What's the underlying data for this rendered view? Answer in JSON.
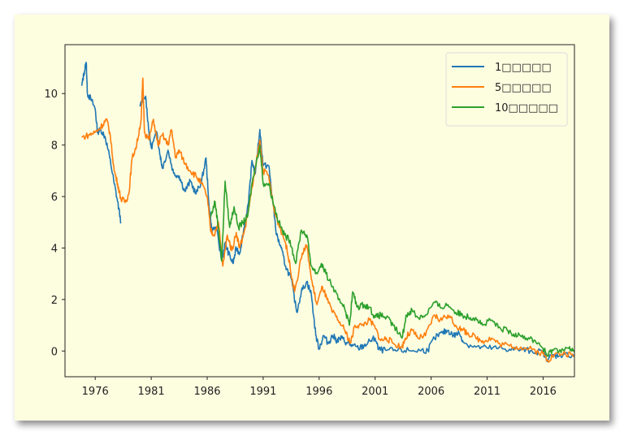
{
  "chart_data": {
    "type": "line",
    "title": "",
    "xlabel": "",
    "ylabel": "",
    "xlim": [
      1973.3,
      2018.8
    ],
    "ylim": [
      -1.0,
      11.9
    ],
    "xticks": [
      1976,
      1981,
      1986,
      1991,
      1996,
      2001,
      2006,
      2011,
      2016
    ],
    "yticks": [
      0,
      2,
      4,
      6,
      8,
      10
    ],
    "grid": false,
    "legend_position": "top-right",
    "series": [
      {
        "name": "1□□□□□",
        "color": "#1f77b4",
        "points": [
          [
            1974.8,
            10.3
          ],
          [
            1975.0,
            10.8
          ],
          [
            1975.2,
            11.2
          ],
          [
            1975.3,
            10.0
          ],
          [
            1975.6,
            9.8
          ],
          [
            1976.0,
            9.4
          ],
          [
            1976.2,
            8.5
          ],
          [
            1976.5,
            8.6
          ],
          [
            1976.9,
            8.3
          ],
          [
            1977.3,
            7.5
          ],
          [
            1977.7,
            6.5
          ],
          [
            1978.0,
            5.8
          ],
          [
            1978.3,
            5.0
          ],
          null,
          [
            1980.0,
            9.5
          ],
          [
            1980.5,
            9.9
          ],
          [
            1980.8,
            8.5
          ],
          [
            1981.0,
            7.9
          ],
          [
            1981.5,
            8.5
          ],
          [
            1981.8,
            7.6
          ],
          [
            1982.0,
            7.1
          ],
          [
            1982.5,
            7.8
          ],
          [
            1983.0,
            6.9
          ],
          [
            1983.5,
            6.8
          ],
          [
            1984.0,
            6.2
          ],
          [
            1984.5,
            6.6
          ],
          [
            1985.0,
            6.1
          ],
          [
            1985.5,
            6.6
          ],
          [
            1985.9,
            7.5
          ],
          [
            1986.1,
            6.0
          ],
          [
            1986.4,
            4.7
          ],
          [
            1986.8,
            4.8
          ],
          [
            1987.3,
            3.5
          ],
          [
            1987.6,
            4.2
          ],
          [
            1987.9,
            3.8
          ],
          [
            1988.3,
            3.4
          ],
          [
            1988.6,
            4.0
          ],
          [
            1988.9,
            3.8
          ],
          [
            1989.3,
            4.8
          ],
          [
            1989.7,
            5.8
          ],
          [
            1990.0,
            7.4
          ],
          [
            1990.3,
            6.9
          ],
          [
            1990.7,
            8.6
          ],
          [
            1991.0,
            7.2
          ],
          [
            1991.5,
            7.2
          ],
          [
            1991.8,
            6.0
          ],
          [
            1992.2,
            4.5
          ],
          [
            1992.6,
            4.0
          ],
          [
            1993.0,
            3.3
          ],
          [
            1993.5,
            2.8
          ],
          [
            1994.0,
            1.5
          ],
          [
            1994.4,
            2.3
          ],
          [
            1994.9,
            2.7
          ],
          [
            1995.3,
            2.2
          ],
          [
            1995.7,
            0.6
          ],
          [
            1996.0,
            0.1
          ],
          [
            1996.4,
            0.6
          ],
          [
            1996.8,
            0.3
          ],
          [
            1997.2,
            0.6
          ],
          [
            1997.6,
            0.4
          ],
          [
            1998.0,
            0.5
          ],
          [
            1998.5,
            0.3
          ],
          [
            1999.0,
            0.2
          ],
          [
            1999.5,
            0.1
          ],
          [
            2000.0,
            0.2
          ],
          [
            2000.6,
            0.4
          ],
          [
            2001.0,
            0.5
          ],
          [
            2001.3,
            0.05
          ],
          [
            2002.0,
            0.02
          ],
          [
            2003.0,
            0.02
          ],
          [
            2004.0,
            0.02
          ],
          [
            2005.0,
            0.02
          ],
          [
            2005.7,
            0.03
          ],
          [
            2006.3,
            0.5
          ],
          [
            2007.0,
            0.7
          ],
          [
            2007.5,
            0.8
          ],
          [
            2008.0,
            0.6
          ],
          [
            2008.5,
            0.7
          ],
          [
            2009.0,
            0.3
          ],
          [
            2010.0,
            0.15
          ],
          [
            2011.0,
            0.12
          ],
          [
            2012.0,
            0.1
          ],
          [
            2013.0,
            0.07
          ],
          [
            2014.0,
            0.05
          ],
          [
            2015.0,
            0.0
          ],
          [
            2016.0,
            -0.05
          ],
          [
            2016.3,
            -0.3
          ],
          [
            2016.8,
            -0.2
          ],
          [
            2017.5,
            -0.15
          ],
          [
            2018.8,
            -0.15
          ]
        ]
      },
      {
        "name": "5□□□□□",
        "color": "#ff7f0e",
        "points": [
          [
            1974.8,
            8.3
          ],
          [
            1975.5,
            8.4
          ],
          [
            1976.0,
            8.5
          ],
          [
            1976.5,
            8.7
          ],
          [
            1977.0,
            9.0
          ],
          [
            1977.3,
            8.5
          ],
          [
            1977.7,
            7.0
          ],
          [
            1978.0,
            6.5
          ],
          [
            1978.3,
            5.9
          ],
          [
            1978.7,
            5.8
          ],
          [
            1979.0,
            6.1
          ],
          [
            1979.3,
            7.5
          ],
          [
            1979.7,
            8.0
          ],
          [
            1980.1,
            9.0
          ],
          [
            1980.25,
            10.6
          ],
          [
            1980.4,
            8.5
          ],
          [
            1980.8,
            8.2
          ],
          [
            1981.2,
            9.0
          ],
          [
            1981.6,
            8.0
          ],
          [
            1982.0,
            8.4
          ],
          [
            1982.5,
            8.0
          ],
          [
            1982.8,
            8.6
          ],
          [
            1983.2,
            7.5
          ],
          [
            1983.5,
            7.8
          ],
          [
            1984.0,
            7.3
          ],
          [
            1984.5,
            7.0
          ],
          [
            1985.0,
            6.8
          ],
          [
            1985.5,
            6.5
          ],
          [
            1986.0,
            6.0
          ],
          [
            1986.3,
            4.7
          ],
          [
            1986.6,
            4.5
          ],
          [
            1987.0,
            5.0
          ],
          [
            1987.4,
            3.3
          ],
          [
            1987.8,
            4.5
          ],
          [
            1988.2,
            3.9
          ],
          [
            1988.6,
            4.6
          ],
          [
            1988.9,
            4.0
          ],
          [
            1989.4,
            4.8
          ],
          [
            1989.8,
            5.8
          ],
          [
            1990.2,
            6.8
          ],
          [
            1990.7,
            8.2
          ],
          [
            1991.0,
            7.0
          ],
          [
            1991.5,
            6.8
          ],
          [
            1992.0,
            5.4
          ],
          [
            1992.5,
            4.8
          ],
          [
            1993.0,
            4.2
          ],
          [
            1993.4,
            3.3
          ],
          [
            1993.8,
            2.3
          ],
          [
            1994.5,
            3.8
          ],
          [
            1994.9,
            4.1
          ],
          [
            1995.3,
            2.8
          ],
          [
            1995.8,
            1.8
          ],
          [
            1996.3,
            2.5
          ],
          [
            1996.7,
            2.0
          ],
          [
            1997.2,
            1.5
          ],
          [
            1997.7,
            1.2
          ],
          [
            1998.3,
            0.8
          ],
          [
            1998.8,
            0.3
          ],
          [
            1999.2,
            1.0
          ],
          [
            1999.8,
            1.0
          ],
          [
            2000.5,
            1.2
          ],
          [
            2001.0,
            0.9
          ],
          [
            2001.5,
            0.4
          ],
          [
            2002.0,
            0.5
          ],
          [
            2002.6,
            0.3
          ],
          [
            2003.4,
            0.15
          ],
          [
            2003.7,
            0.5
          ],
          [
            2004.3,
            0.8
          ],
          [
            2004.8,
            0.5
          ],
          [
            2005.5,
            0.6
          ],
          [
            2006.3,
            1.4
          ],
          [
            2006.8,
            1.2
          ],
          [
            2007.5,
            1.4
          ],
          [
            2008.2,
            1.0
          ],
          [
            2008.8,
            0.8
          ],
          [
            2009.3,
            0.7
          ],
          [
            2010.0,
            0.5
          ],
          [
            2010.6,
            0.4
          ],
          [
            2011.4,
            0.5
          ],
          [
            2012.0,
            0.3
          ],
          [
            2013.0,
            0.2
          ],
          [
            2014.0,
            0.15
          ],
          [
            2015.0,
            0.05
          ],
          [
            2016.0,
            -0.1
          ],
          [
            2016.4,
            -0.35
          ],
          [
            2017.0,
            -0.15
          ],
          [
            2018.0,
            -0.1
          ],
          [
            2018.8,
            -0.2
          ]
        ]
      },
      {
        "name": "10□□□□□",
        "color": "#2ca02c",
        "points": [
          [
            1986.3,
            5.2
          ],
          [
            1986.7,
            5.8
          ],
          [
            1987.0,
            4.8
          ],
          [
            1987.3,
            3.5
          ],
          [
            1987.6,
            6.6
          ],
          [
            1988.0,
            4.8
          ],
          [
            1988.4,
            5.6
          ],
          [
            1988.8,
            4.8
          ],
          [
            1989.2,
            5.0
          ],
          [
            1989.6,
            5.2
          ],
          [
            1990.0,
            6.5
          ],
          [
            1990.7,
            8.0
          ],
          [
            1991.0,
            6.5
          ],
          [
            1991.5,
            6.5
          ],
          [
            1992.0,
            5.6
          ],
          [
            1992.4,
            5.0
          ],
          [
            1992.9,
            4.5
          ],
          [
            1993.4,
            4.3
          ],
          [
            1993.9,
            3.4
          ],
          [
            1994.4,
            4.7
          ],
          [
            1994.9,
            4.5
          ],
          [
            1995.3,
            3.3
          ],
          [
            1995.8,
            3.0
          ],
          [
            1996.2,
            3.4
          ],
          [
            1996.6,
            3.0
          ],
          [
            1997.2,
            2.5
          ],
          [
            1997.7,
            2.0
          ],
          [
            1998.2,
            1.8
          ],
          [
            1998.7,
            1.0
          ],
          [
            1999.0,
            2.3
          ],
          [
            1999.4,
            1.7
          ],
          [
            2000.0,
            1.8
          ],
          [
            2000.5,
            1.7
          ],
          [
            2001.0,
            1.3
          ],
          [
            2001.5,
            1.4
          ],
          [
            2002.0,
            1.3
          ],
          [
            2002.6,
            1.0
          ],
          [
            2003.4,
            0.5
          ],
          [
            2003.8,
            1.4
          ],
          [
            2004.3,
            1.6
          ],
          [
            2004.8,
            1.3
          ],
          [
            2005.5,
            1.4
          ],
          [
            2006.3,
            1.9
          ],
          [
            2006.8,
            1.7
          ],
          [
            2007.5,
            1.8
          ],
          [
            2008.2,
            1.5
          ],
          [
            2008.8,
            1.4
          ],
          [
            2009.5,
            1.3
          ],
          [
            2010.0,
            1.3
          ],
          [
            2010.6,
            1.0
          ],
          [
            2011.4,
            1.2
          ],
          [
            2012.0,
            0.9
          ],
          [
            2012.8,
            0.8
          ],
          [
            2013.3,
            0.6
          ],
          [
            2013.8,
            0.7
          ],
          [
            2014.5,
            0.5
          ],
          [
            2015.3,
            0.4
          ],
          [
            2016.0,
            0.1
          ],
          [
            2016.4,
            -0.2
          ],
          [
            2016.8,
            0.05
          ],
          [
            2017.5,
            0.05
          ],
          [
            2018.3,
            0.1
          ],
          [
            2018.8,
            -0.05
          ]
        ]
      }
    ]
  }
}
